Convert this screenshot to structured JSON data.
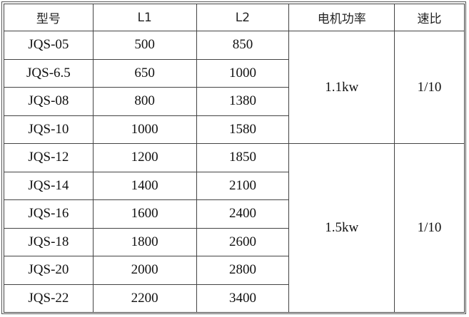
{
  "headers": [
    "型号",
    "L1",
    "L2",
    "电机功率",
    "速比"
  ],
  "rows": [
    {
      "model": "JQS-05",
      "l1": "500",
      "l2": "850"
    },
    {
      "model": "JQS-6.5",
      "l1": "650",
      "l2": "1000"
    },
    {
      "model": "JQS-08",
      "l1": "800",
      "l2": "1380"
    },
    {
      "model": "JQS-10",
      "l1": "1000",
      "l2": "1580"
    },
    {
      "model": "JQS-12",
      "l1": "1200",
      "l2": "1850"
    },
    {
      "model": "JQS-14",
      "l1": "1400",
      "l2": "2100"
    },
    {
      "model": "JQS-16",
      "l1": "1600",
      "l2": "2400"
    },
    {
      "model": "JQS-18",
      "l1": "1800",
      "l2": "2600"
    },
    {
      "model": "JQS-20",
      "l1": "2000",
      "l2": "2800"
    },
    {
      "model": "JQS-22",
      "l1": "2200",
      "l2": "3400"
    }
  ],
  "groups": [
    {
      "power": "1.1kw",
      "ratio": "1/10"
    },
    {
      "power": "1.5kw",
      "ratio": "1/10"
    }
  ]
}
